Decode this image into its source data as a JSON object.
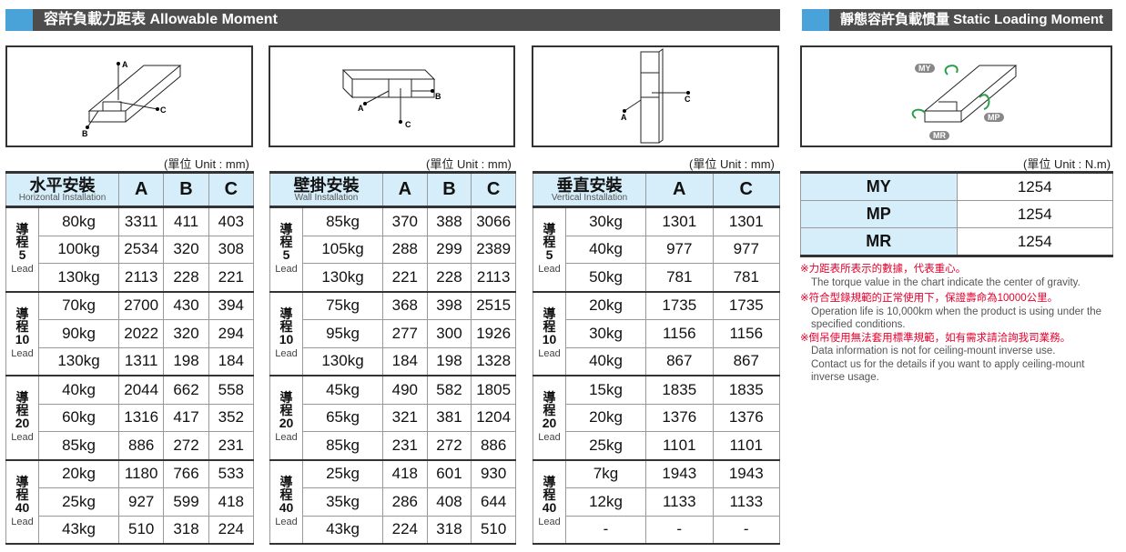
{
  "left_title": "容許負載力距表 Allowable Moment",
  "right_title": "靜態容許負載慣量 Static Loading Moment",
  "diagram_labels": {
    "A": "A",
    "B": "B",
    "C": "C",
    "MY": "MY",
    "MP": "MP",
    "MR": "MR"
  },
  "unit_mm": "(單位 Unit : mm)",
  "unit_nm": "(單位 Unit : N.m)",
  "lead_label": "Lead",
  "lead_prefix": "導程",
  "tables": [
    {
      "title_zh": "水平安裝",
      "title_en": "Horizontal Installation",
      "cols": [
        "A",
        "B",
        "C"
      ],
      "groups": [
        {
          "lead": "5",
          "rows": [
            [
              "80kg",
              "3311",
              "411",
              "403"
            ],
            [
              "100kg",
              "2534",
              "320",
              "308"
            ],
            [
              "130kg",
              "2113",
              "228",
              "221"
            ]
          ]
        },
        {
          "lead": "10",
          "rows": [
            [
              "70kg",
              "2700",
              "430",
              "394"
            ],
            [
              "90kg",
              "2022",
              "320",
              "294"
            ],
            [
              "130kg",
              "1311",
              "198",
              "184"
            ]
          ]
        },
        {
          "lead": "20",
          "rows": [
            [
              "40kg",
              "2044",
              "662",
              "558"
            ],
            [
              "60kg",
              "1316",
              "417",
              "352"
            ],
            [
              "85kg",
              "886",
              "272",
              "231"
            ]
          ]
        },
        {
          "lead": "40",
          "rows": [
            [
              "20kg",
              "1180",
              "766",
              "533"
            ],
            [
              "25kg",
              "927",
              "599",
              "418"
            ],
            [
              "43kg",
              "510",
              "318",
              "224"
            ]
          ]
        }
      ]
    },
    {
      "title_zh": "壁掛安裝",
      "title_en": "Wall Installation",
      "cols": [
        "A",
        "B",
        "C"
      ],
      "groups": [
        {
          "lead": "5",
          "rows": [
            [
              "85kg",
              "370",
              "388",
              "3066"
            ],
            [
              "105kg",
              "288",
              "299",
              "2389"
            ],
            [
              "130kg",
              "221",
              "228",
              "2113"
            ]
          ]
        },
        {
          "lead": "10",
          "rows": [
            [
              "75kg",
              "368",
              "398",
              "2515"
            ],
            [
              "95kg",
              "277",
              "300",
              "1926"
            ],
            [
              "130kg",
              "184",
              "198",
              "1328"
            ]
          ]
        },
        {
          "lead": "20",
          "rows": [
            [
              "45kg",
              "490",
              "582",
              "1805"
            ],
            [
              "65kg",
              "321",
              "381",
              "1204"
            ],
            [
              "85kg",
              "231",
              "272",
              "886"
            ]
          ]
        },
        {
          "lead": "40",
          "rows": [
            [
              "25kg",
              "418",
              "601",
              "930"
            ],
            [
              "35kg",
              "286",
              "408",
              "644"
            ],
            [
              "43kg",
              "224",
              "318",
              "510"
            ]
          ]
        }
      ]
    },
    {
      "title_zh": "垂直安裝",
      "title_en": "Vertical Installation",
      "cols": [
        "A",
        "C"
      ],
      "groups": [
        {
          "lead": "5",
          "rows": [
            [
              "30kg",
              "1301",
              "1301"
            ],
            [
              "40kg",
              "977",
              "977"
            ],
            [
              "50kg",
              "781",
              "781"
            ]
          ]
        },
        {
          "lead": "10",
          "rows": [
            [
              "20kg",
              "1735",
              "1735"
            ],
            [
              "30kg",
              "1156",
              "1156"
            ],
            [
              "40kg",
              "867",
              "867"
            ]
          ]
        },
        {
          "lead": "20",
          "rows": [
            [
              "15kg",
              "1835",
              "1835"
            ],
            [
              "20kg",
              "1376",
              "1376"
            ],
            [
              "25kg",
              "1101",
              "1101"
            ]
          ]
        },
        {
          "lead": "40",
          "rows": [
            [
              "7kg",
              "1943",
              "1943"
            ],
            [
              "12kg",
              "1133",
              "1133"
            ],
            [
              "-",
              "-",
              "-"
            ]
          ]
        }
      ]
    }
  ],
  "moments": [
    {
      "k": "MY",
      "v": "1254"
    },
    {
      "k": "MP",
      "v": "1254"
    },
    {
      "k": "MR",
      "v": "1254"
    }
  ],
  "notes": [
    {
      "zh": "※力距表所表示的數據，代表重心。",
      "en": [
        "The torque value in the chart indicate the center of gravity."
      ]
    },
    {
      "zh": "※符合型錄規範的正常使用下，保證壽命為10000公里。",
      "en": [
        "Operation life is 10,000km when the product is using under the specified conditions."
      ]
    },
    {
      "zh": "※倒吊使用無法套用標準規範，如有需求請洽詢我司業務。",
      "en": [
        "Data information is not for ceiling-mount inverse use.",
        "Contact us for the details if you want to apply ceiling-mount inverse usage."
      ]
    }
  ],
  "colors": {
    "header_bar": "#4d4d4d",
    "accent": "#4aa3d8",
    "table_header": "#d6eef9",
    "note_red": "#e4002b",
    "arrow_green": "#2a9d4a"
  }
}
